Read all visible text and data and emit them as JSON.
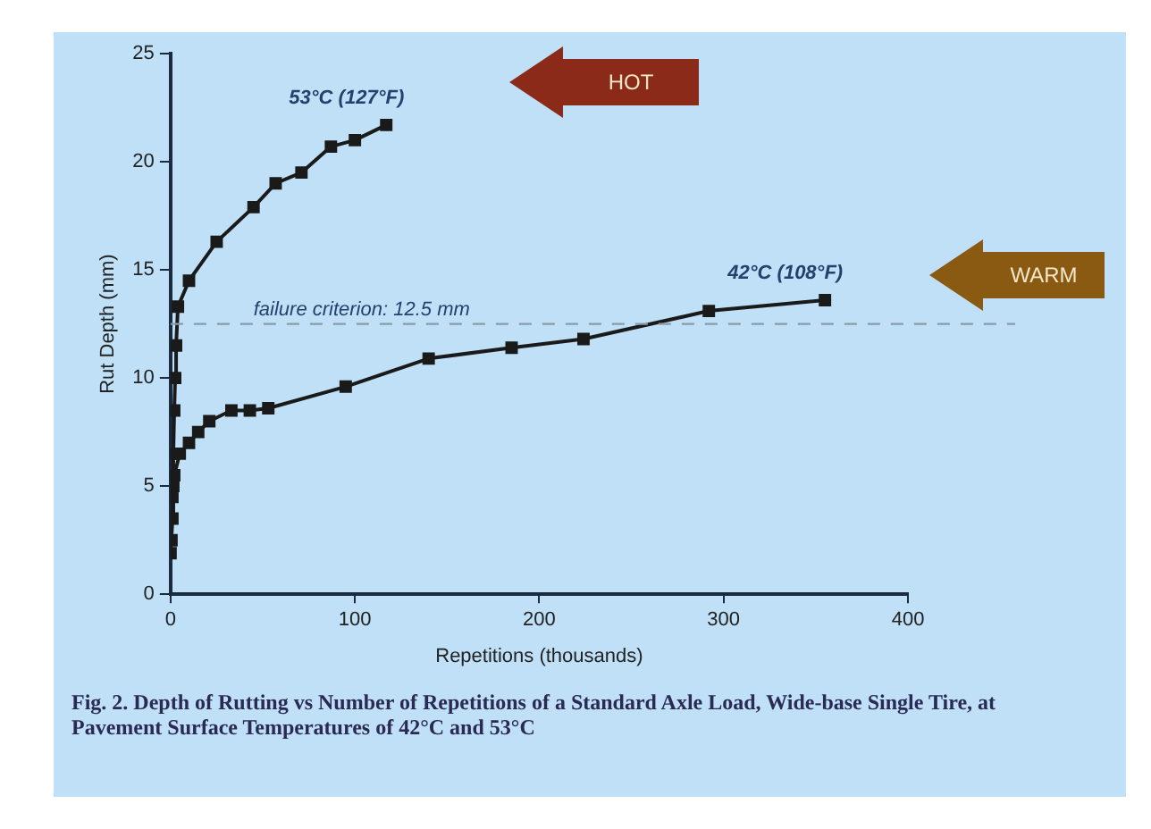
{
  "chart_data": {
    "type": "line",
    "title": "Fig. 2. Depth of Rutting vs Number of Repetitions of a Standard Axle Load, Wide-base Single Tire, at Pavement Surface Temperatures of 42°C and 53°C",
    "xlabel": "Repetitions (thousands)",
    "ylabel": "Rut Depth (mm)",
    "xlim": [
      0,
      400
    ],
    "xticks": [
      0,
      100,
      200,
      300,
      400
    ],
    "ylim": [
      0,
      25
    ],
    "yticks": [
      0,
      5,
      10,
      15,
      20,
      25
    ],
    "series": [
      {
        "name": "53°C (127°F)",
        "color": "#1a1a1a",
        "x": [
          0.5,
          1,
          1.5,
          2,
          2.5,
          3,
          4,
          10,
          25,
          45,
          57,
          71,
          87,
          100,
          117
        ],
        "values": [
          2.5,
          4.5,
          6.5,
          8.5,
          10,
          11.5,
          13.3,
          14.5,
          16.3,
          17.9,
          19,
          19.5,
          20.7,
          21,
          21.7
        ]
      },
      {
        "name": "42°C (108°F)",
        "color": "#1a1a1a",
        "x": [
          0,
          1,
          1.5,
          2,
          5,
          10,
          15,
          21,
          33,
          43,
          53,
          95,
          140,
          185,
          224,
          292,
          355
        ],
        "values": [
          1.9,
          3.5,
          5,
          5.5,
          6.5,
          7,
          7.5,
          8,
          8.5,
          8.5,
          8.6,
          9.6,
          10.9,
          11.4,
          11.8,
          13.1,
          13.6
        ]
      }
    ],
    "ref_lines": [
      {
        "axis": "y",
        "value": 12.5,
        "label": "failure criterion: 12.5 mm",
        "color": "#8a9aa8",
        "line_style": "dashed"
      }
    ],
    "annotations": [
      "HOT",
      "WARM"
    ],
    "marker": "square",
    "grid": false,
    "legend": false
  }
}
